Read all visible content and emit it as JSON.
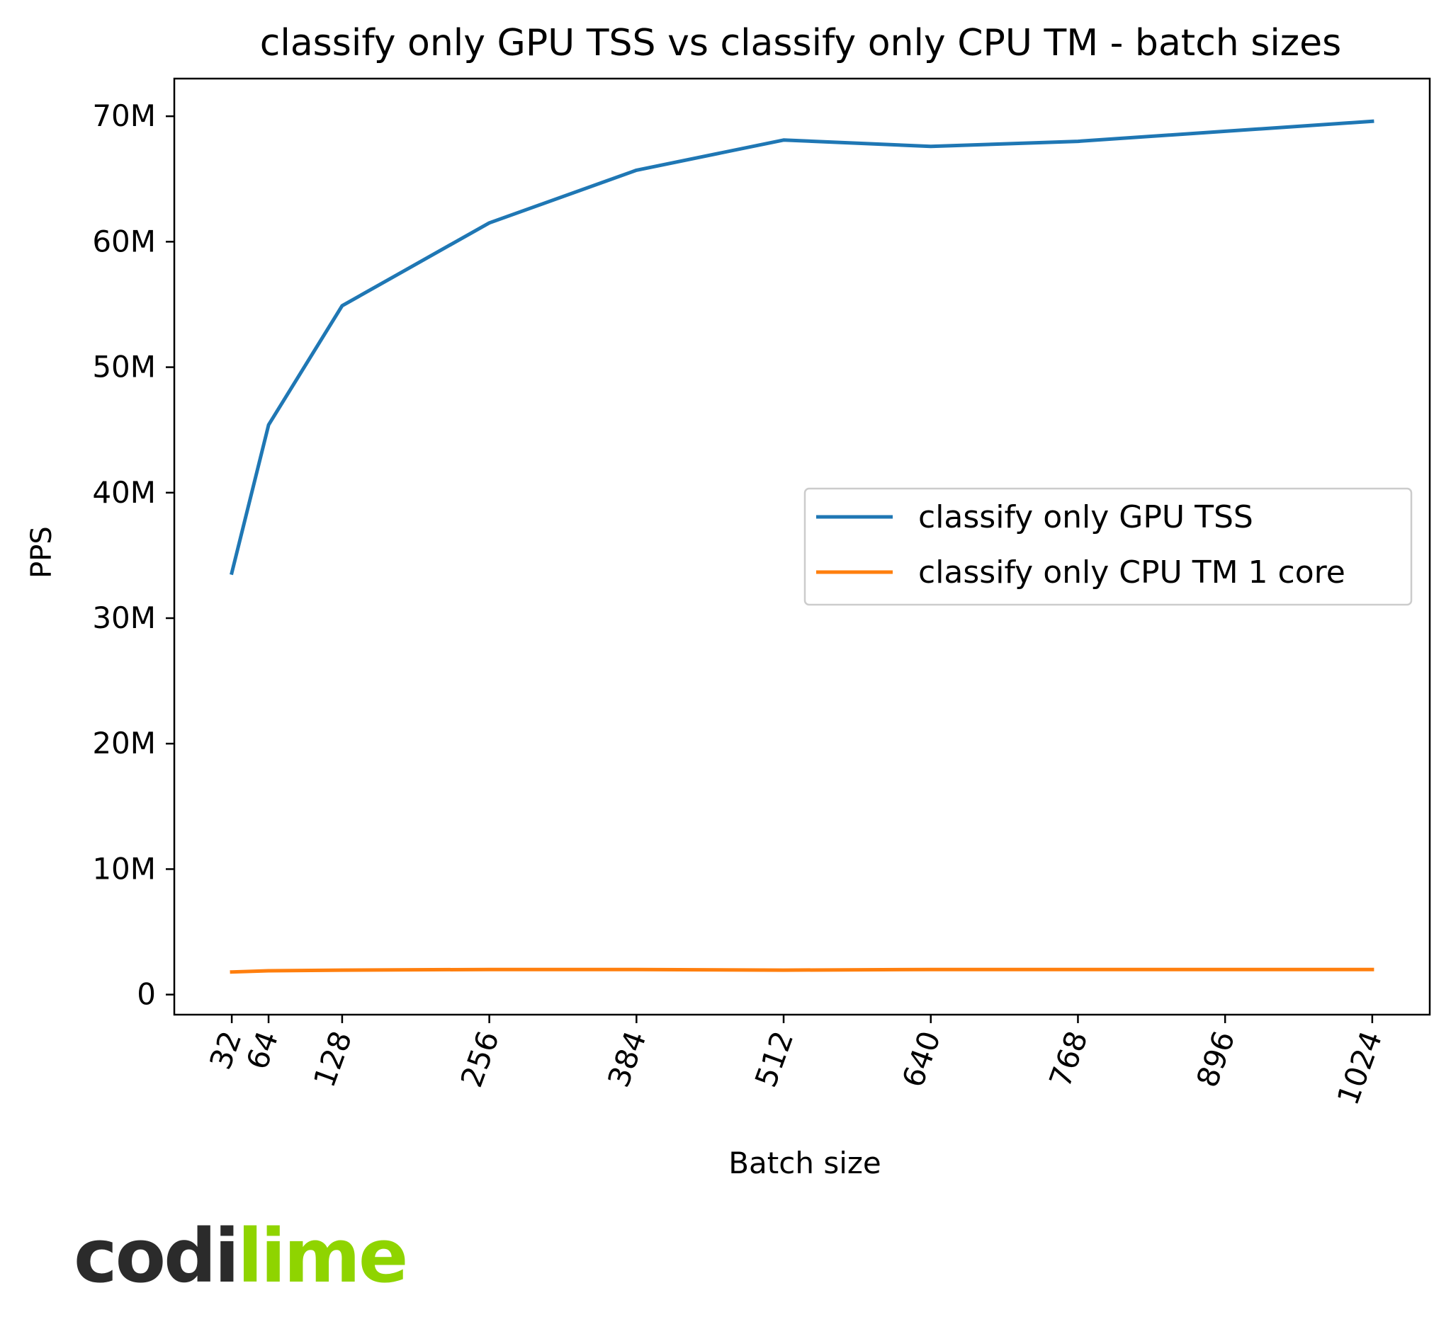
{
  "chart_data": {
    "type": "line",
    "title": "classify only GPU TSS vs classify only CPU TM - batch sizes",
    "xlabel": "Batch size",
    "ylabel": "PPS",
    "x": [
      32,
      64,
      128,
      256,
      384,
      512,
      640,
      768,
      896,
      1024
    ],
    "x_tick_labels": [
      "32",
      "64",
      "128",
      "256",
      "384",
      "512",
      "640",
      "768",
      "896",
      "1024"
    ],
    "y_ticks": [
      0,
      10000000,
      20000000,
      30000000,
      40000000,
      50000000,
      60000000,
      70000000
    ],
    "y_tick_labels": [
      "0",
      "10M",
      "20M",
      "30M",
      "40M",
      "50M",
      "60M",
      "70M"
    ],
    "xlim": [
      -18,
      1074
    ],
    "ylim": [
      -1600000,
      73000000
    ],
    "grid": false,
    "legend_position": "center-right",
    "series": [
      {
        "name": "classify only GPU TSS",
        "color": "#1f77b4",
        "values": [
          33600000,
          45400000,
          54900000,
          61500000,
          65700000,
          68100000,
          67600000,
          68000000,
          68800000,
          69600000
        ]
      },
      {
        "name": "classify only CPU TM 1 core",
        "color": "#ff7f0e",
        "values": [
          1800000,
          1900000,
          1950000,
          2000000,
          2000000,
          1950000,
          2000000,
          2000000,
          2000000,
          2000000
        ]
      }
    ]
  },
  "branding": {
    "logo_part1": "codi",
    "logo_part2": "lime"
  }
}
